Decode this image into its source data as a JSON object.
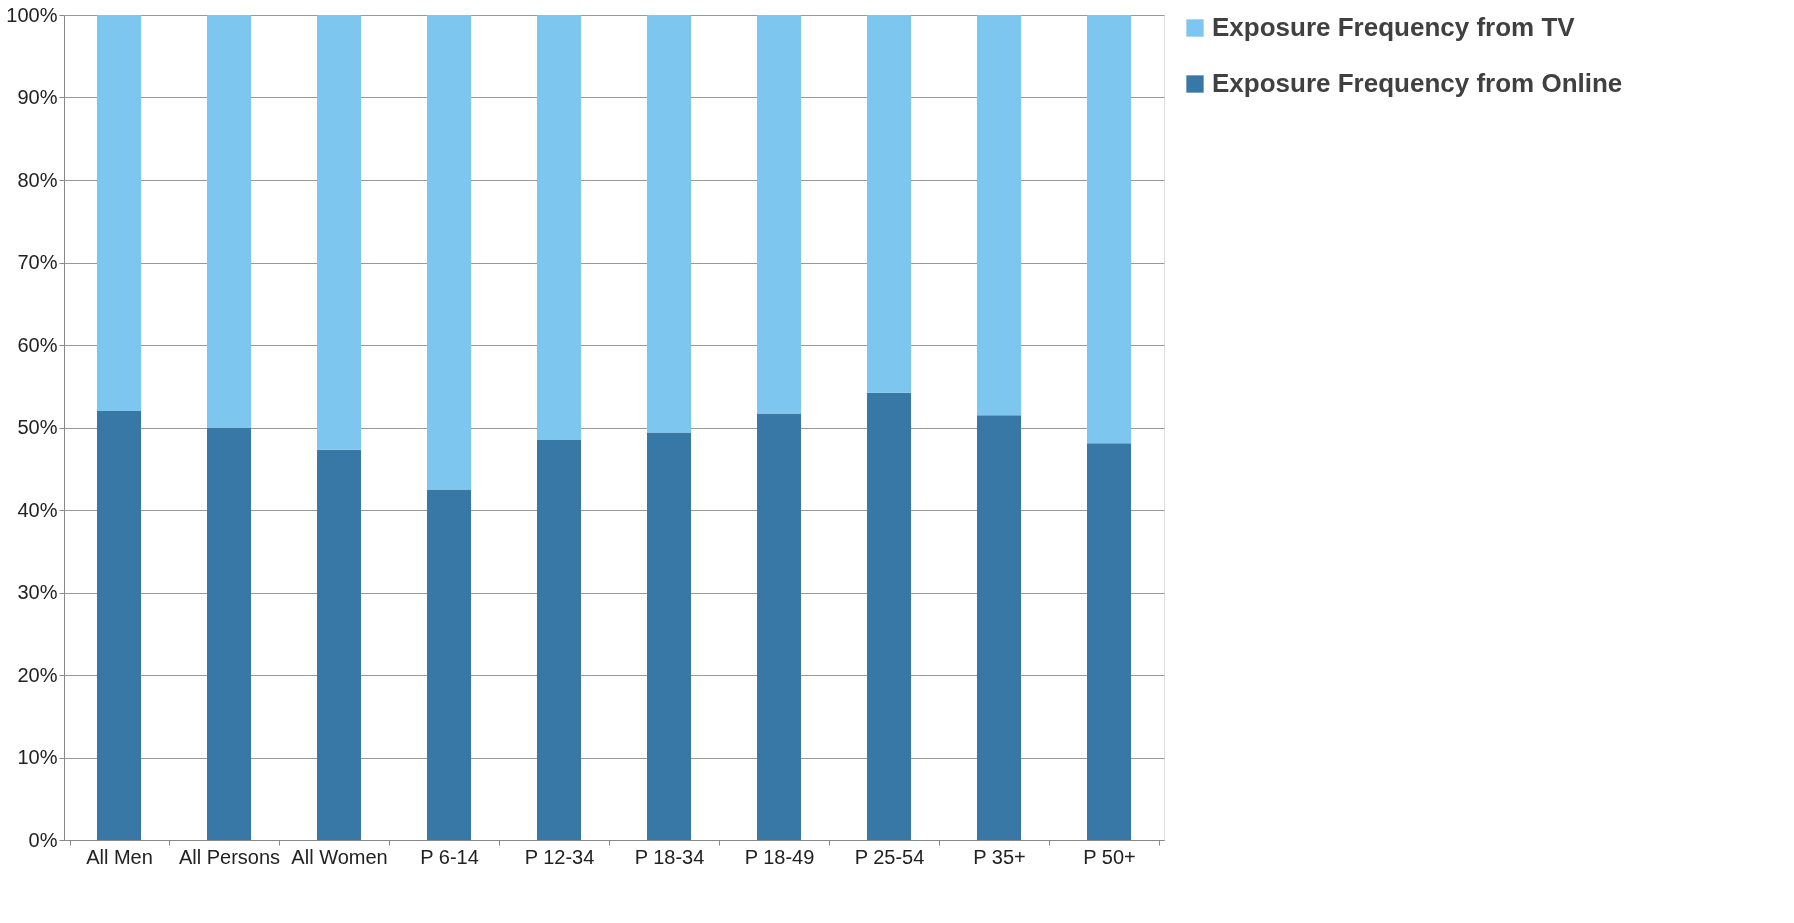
{
  "chart_data": {
    "type": "bar",
    "stacked": true,
    "categories": [
      "All Men",
      "All Persons",
      "All Women",
      "P 6-14",
      "P 12-34",
      "P 18-34",
      "P 18-49",
      "P 25-54",
      "P 35+",
      "P 50+"
    ],
    "series": [
      {
        "name": "Exposure Frequency from Online",
        "color": "#3878a6",
        "values": [
          52,
          50,
          47.3,
          42.5,
          48.5,
          49.4,
          51.7,
          54.2,
          51.5,
          48.1
        ]
      },
      {
        "name": "Exposure Frequency from TV",
        "color": "#7dc6f0",
        "values": [
          48,
          50,
          52.7,
          57.5,
          51.5,
          50.6,
          48.3,
          45.8,
          48.5,
          51.9
        ]
      }
    ],
    "ylim": [
      0,
      100
    ],
    "yticks": [
      {
        "value": 0,
        "label": "0%"
      },
      {
        "value": 10,
        "label": "10%"
      },
      {
        "value": 20,
        "label": "20%"
      },
      {
        "value": 30,
        "label": "30%"
      },
      {
        "value": 40,
        "label": "40%"
      },
      {
        "value": 50,
        "label": "50%"
      },
      {
        "value": 60,
        "label": "60%"
      },
      {
        "value": 70,
        "label": "70%"
      },
      {
        "value": 80,
        "label": "80%"
      },
      {
        "value": 90,
        "label": "90%"
      },
      {
        "value": 100,
        "label": "100%"
      }
    ],
    "grid": "y",
    "legend": "right"
  }
}
